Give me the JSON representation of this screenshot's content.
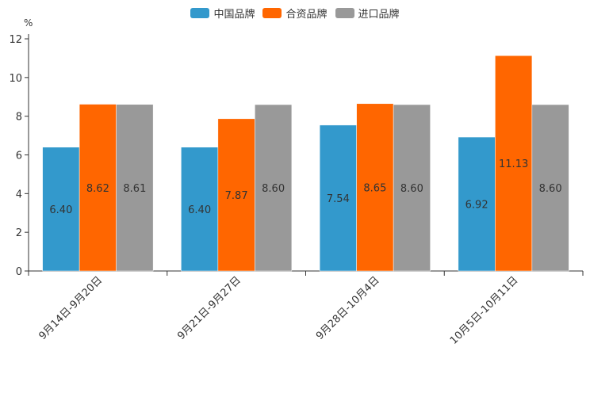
{
  "chart_data": {
    "type": "bar",
    "unit": "%",
    "categories": [
      "9月14日-9月20日",
      "9月21日-9月27日",
      "9月28日-10月4日",
      "10月5日-10月11日"
    ],
    "series": [
      {
        "name": "中国品牌",
        "color": "#3399cc",
        "values": [
          6.4,
          6.4,
          7.54,
          6.92
        ],
        "labels": [
          "6.40",
          "6.40",
          "7.54",
          "6.92"
        ]
      },
      {
        "name": "合资品牌",
        "color": "#ff6600",
        "values": [
          8.62,
          7.87,
          8.65,
          11.13
        ],
        "labels": [
          "8.62",
          "7.87",
          "8.65",
          "11.13"
        ]
      },
      {
        "name": "进口品牌",
        "color": "#999999",
        "values": [
          8.61,
          8.6,
          8.6,
          8.6
        ],
        "labels": [
          "8.61",
          "8.60",
          "8.60",
          "8.60"
        ]
      }
    ],
    "yticks": [
      "0",
      "2",
      "4",
      "6",
      "8",
      "10",
      "12"
    ],
    "ylim": [
      0,
      12
    ],
    "legend_position": "top-center"
  }
}
